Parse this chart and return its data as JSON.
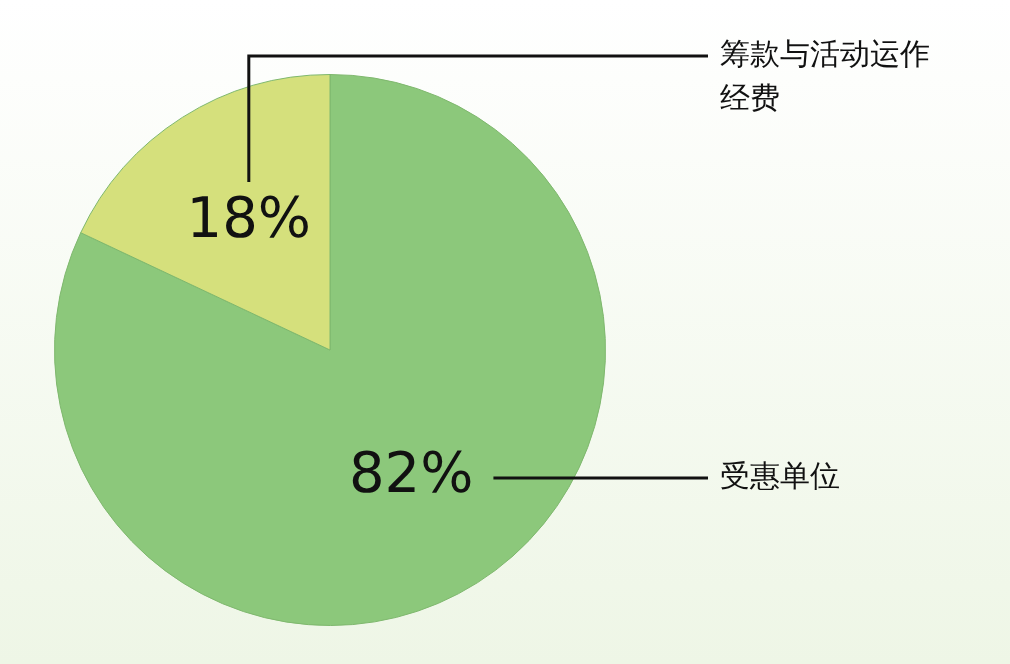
{
  "chart_data": {
    "type": "pie",
    "categories": [
      "受惠单位",
      "筹款与活动运作经费"
    ],
    "values": [
      82,
      18
    ],
    "colors": [
      "#8cc87b",
      "#d5e07c"
    ],
    "value_labels": [
      "82%",
      "18%"
    ]
  }
}
